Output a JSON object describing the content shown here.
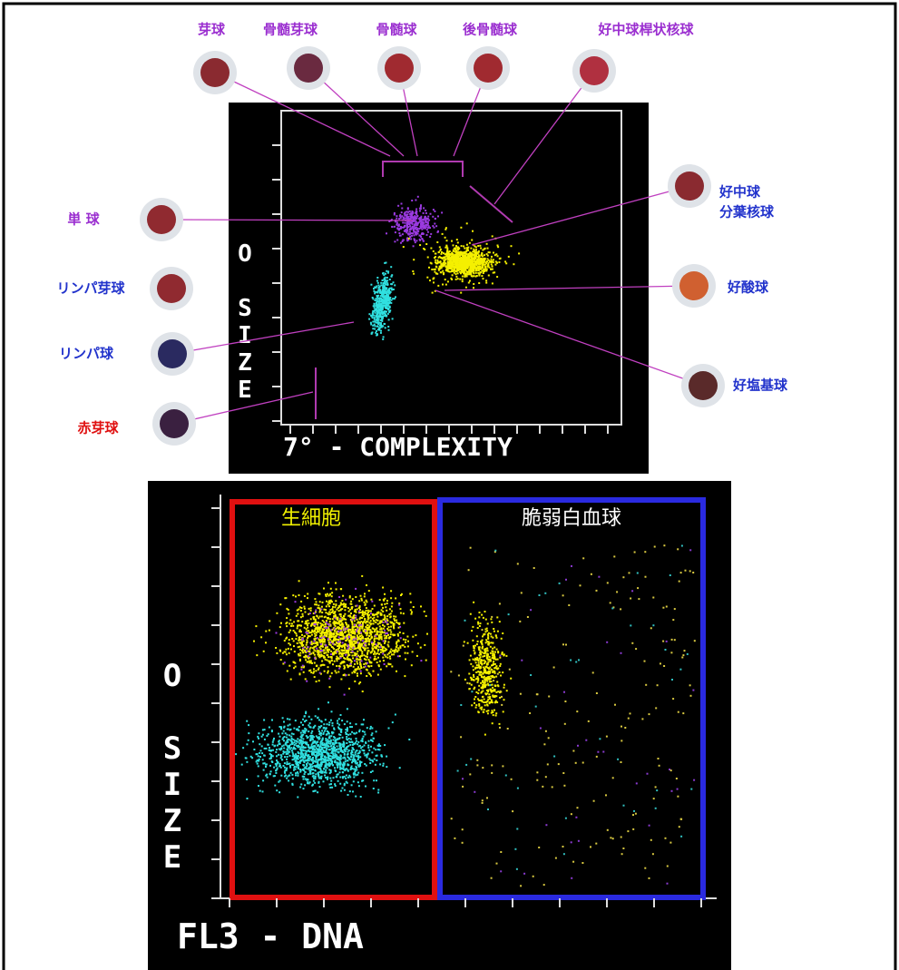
{
  "top_plot": {
    "x_label": "7° - COMPLEXITY",
    "y_label": "O SIZE",
    "cells": [
      {
        "label": "芽球"
      },
      {
        "label": "骨髄芽球"
      },
      {
        "label": "骨髄球"
      },
      {
        "label": "後骨髄球"
      },
      {
        "label": "好中球桿状核球"
      },
      {
        "label": "単 球"
      },
      {
        "label": "リンパ芽球"
      },
      {
        "label": "リンパ球"
      },
      {
        "label": "赤芽球"
      },
      {
        "lines": [
          "好中球",
          "分葉核球"
        ]
      },
      {
        "label": "好酸球"
      },
      {
        "label": "好塩基球"
      }
    ]
  },
  "bottom_plot": {
    "x_label": "FL3 - DNA",
    "y_label": "O SIZE",
    "regions": [
      {
        "label": "生細胞"
      },
      {
        "label": "脆弱白血球"
      }
    ]
  }
}
